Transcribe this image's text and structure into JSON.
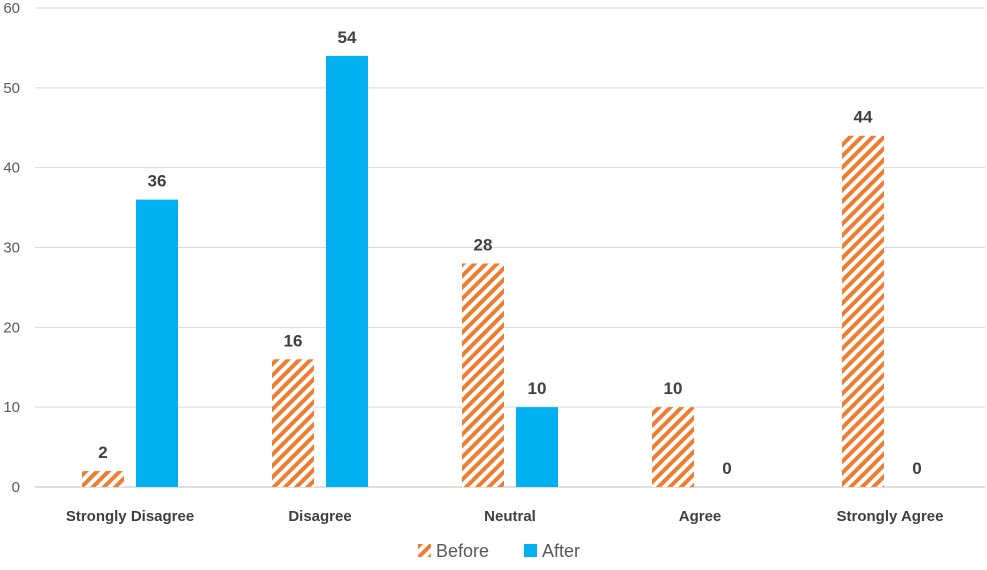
{
  "chart_data": {
    "type": "bar",
    "categories": [
      "Strongly Disagree",
      "Disagree",
      "Neutral",
      "Agree",
      "Strongly Agree"
    ],
    "series": [
      {
        "name": "Before",
        "values": [
          2,
          16,
          28,
          10,
          44
        ],
        "color": "#ED7D31",
        "pattern": "diagonal-stripes"
      },
      {
        "name": "After",
        "values": [
          36,
          54,
          10,
          0,
          0
        ],
        "color": "#00B0F0",
        "pattern": "solid"
      }
    ],
    "ylim": [
      0,
      60
    ],
    "yticks": [
      0,
      10,
      20,
      30,
      40,
      50,
      60
    ],
    "grid": true,
    "legend": "bottom",
    "data_labels": true
  }
}
